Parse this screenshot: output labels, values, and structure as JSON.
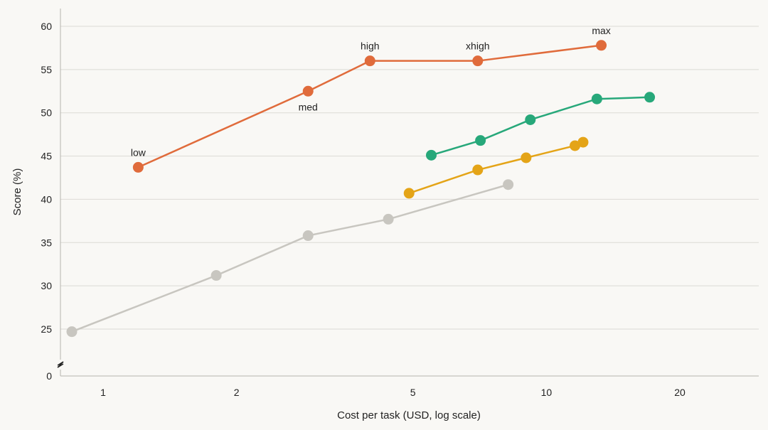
{
  "chart_data": {
    "type": "line",
    "title": "",
    "xlabel": "Cost per task (USD, log scale)",
    "ylabel": "Score (%)",
    "x_scale": "log",
    "xlim": [
      0.8,
      33
    ],
    "ylim": [
      25,
      61
    ],
    "y_axis_break": true,
    "y_axis_zero_label": "0",
    "x_ticks": [
      1,
      2,
      5,
      10,
      20
    ],
    "x_tick_labels": [
      "1",
      "2",
      "5",
      "10",
      "20"
    ],
    "y_ticks": [
      25,
      30,
      35,
      40,
      45,
      50,
      55,
      60
    ],
    "y_tick_labels": [
      "25",
      "30",
      "35",
      "40",
      "45",
      "50",
      "55",
      "60"
    ],
    "grid": "horizontal",
    "series": [
      {
        "color": "#e06b3b",
        "points": [
          {
            "x": 1.2,
            "y": 43.7,
            "label": "low",
            "label_pos": "above"
          },
          {
            "x": 2.9,
            "y": 52.5,
            "label": "med",
            "label_pos": "below"
          },
          {
            "x": 4.0,
            "y": 56.0,
            "label": "high",
            "label_pos": "above"
          },
          {
            "x": 7.0,
            "y": 56.0,
            "label": "xhigh",
            "label_pos": "above"
          },
          {
            "x": 13.3,
            "y": 57.8,
            "label": "max",
            "label_pos": "above"
          }
        ]
      },
      {
        "color": "#27a87a",
        "points": [
          {
            "x": 5.5,
            "y": 45.1
          },
          {
            "x": 7.1,
            "y": 46.8
          },
          {
            "x": 9.2,
            "y": 49.2
          },
          {
            "x": 13.0,
            "y": 51.6
          },
          {
            "x": 17.1,
            "y": 51.8
          }
        ]
      },
      {
        "color": "#e4a417",
        "points": [
          {
            "x": 4.9,
            "y": 40.7
          },
          {
            "x": 7.0,
            "y": 43.4
          },
          {
            "x": 9.0,
            "y": 44.8
          },
          {
            "x": 11.6,
            "y": 46.2
          },
          {
            "x": 12.1,
            "y": 46.6
          }
        ]
      },
      {
        "color": "#c8c6c0",
        "points": [
          {
            "x": 0.85,
            "y": 24.7
          },
          {
            "x": 1.8,
            "y": 31.2
          },
          {
            "x": 2.9,
            "y": 35.8
          },
          {
            "x": 4.4,
            "y": 37.7
          },
          {
            "x": 8.2,
            "y": 41.7
          }
        ]
      }
    ]
  }
}
